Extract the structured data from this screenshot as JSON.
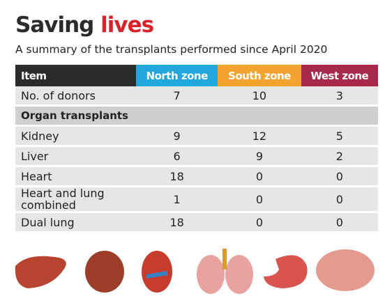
{
  "header": {
    "title_dark": "Saving",
    "title_red": "lives",
    "subtitle": "A summary of the transplants performed since April 2020"
  },
  "table": {
    "columns": [
      "Item",
      "North zone",
      "South zone",
      "West zone"
    ],
    "rows": [
      [
        "No. of donors",
        7,
        10,
        3
      ]
    ],
    "section": "Organ transplants",
    "section_rows": [
      [
        "Kidney",
        9,
        12,
        5
      ],
      [
        "Liver",
        6,
        9,
        2
      ],
      [
        "Heart",
        18,
        0,
        0
      ],
      [
        "Heart and lung combined",
        1,
        0,
        0
      ],
      [
        "Dual lung",
        18,
        0,
        0
      ]
    ]
  }
}
